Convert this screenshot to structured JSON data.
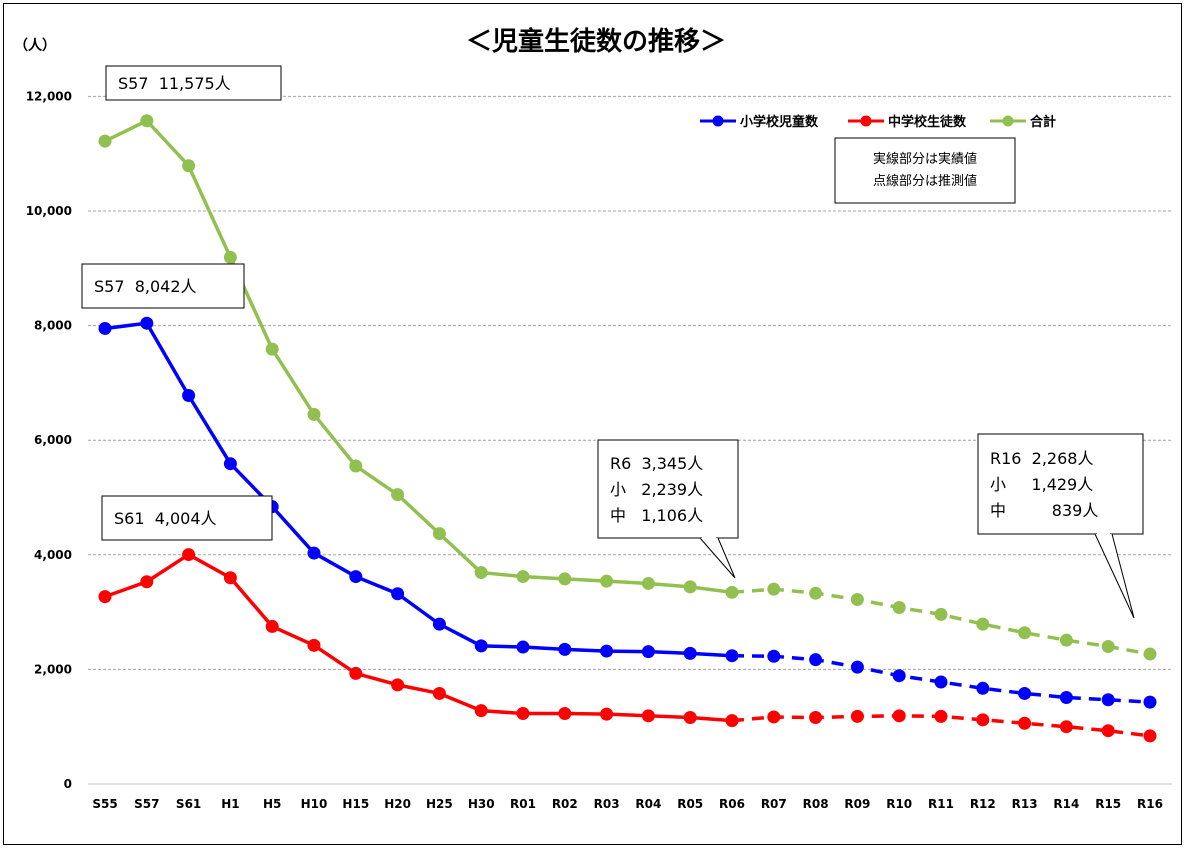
{
  "chart_data": {
    "type": "line",
    "title": "＜児童生徒数の推移＞",
    "y_unit": "（人）",
    "ylim": [
      0,
      12000
    ],
    "yticks": [
      0,
      2000,
      4000,
      6000,
      8000,
      10000,
      12000
    ],
    "ytick_labels": [
      "0",
      "2,000",
      "4,000",
      "6,000",
      "8,000",
      "10,000",
      "12,000"
    ],
    "grid": true,
    "legend_placement": "top-right",
    "categories": [
      "S55",
      "S57",
      "S61",
      "H1",
      "H5",
      "H10",
      "H15",
      "H20",
      "H25",
      "H30",
      "R01",
      "R02",
      "R03",
      "R04",
      "R05",
      "R06",
      "R07",
      "R08",
      "R09",
      "R10",
      "R11",
      "R12",
      "R13",
      "R14",
      "R15",
      "R16"
    ],
    "actual_until": "R06",
    "series": [
      {
        "name": "小学校児童数",
        "color": "#0000ff",
        "values": [
          7950,
          8042,
          6780,
          5590,
          4840,
          4030,
          3620,
          3320,
          2790,
          2410,
          2390,
          2350,
          2320,
          2310,
          2280,
          2239,
          2230,
          2170,
          2040,
          1890,
          1780,
          1670,
          1580,
          1510,
          1470,
          1429
        ]
      },
      {
        "name": "中学校生徒数",
        "color": "#ff0000",
        "values": [
          3270,
          3530,
          4004,
          3600,
          2750,
          2420,
          1930,
          1730,
          1580,
          1280,
          1230,
          1230,
          1220,
          1190,
          1160,
          1106,
          1170,
          1160,
          1180,
          1190,
          1180,
          1120,
          1060,
          1000,
          930,
          839
        ]
      },
      {
        "name": "合計",
        "color": "#92c050",
        "values": [
          11220,
          11575,
          10790,
          9190,
          7590,
          6450,
          5550,
          5050,
          4370,
          3690,
          3620,
          3580,
          3540,
          3500,
          3440,
          3345,
          3400,
          3330,
          3220,
          3080,
          2960,
          2790,
          2640,
          2510,
          2400,
          2268
        ]
      }
    ],
    "note_lines": [
      "実線部分は実績値",
      "点線部分は推測値"
    ],
    "annotations": [
      {
        "lines": [
          "S57  11,575人"
        ]
      },
      {
        "lines": [
          "S57  8,042人"
        ]
      },
      {
        "lines": [
          "S61  4,004人"
        ]
      },
      {
        "lines": [
          "R6  3,345人",
          "小   2,239人",
          "中   1,106人"
        ]
      },
      {
        "lines": [
          "R16  2,268人",
          "小     1,429人",
          "中         839人"
        ]
      }
    ]
  }
}
